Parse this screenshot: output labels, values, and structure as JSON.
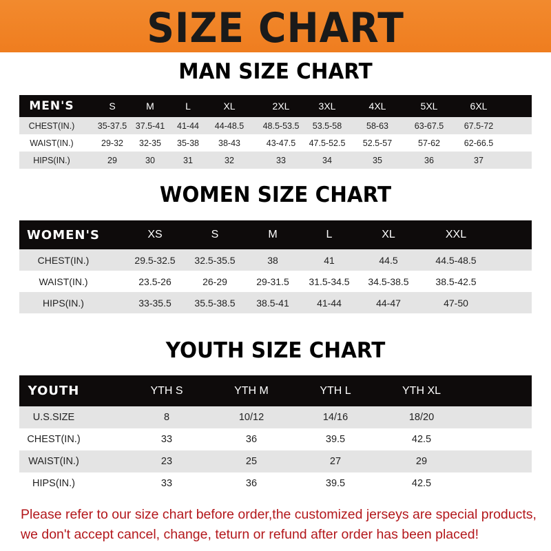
{
  "banner": {
    "title": "SIZE CHART",
    "color": "#ef7d1f"
  },
  "men": {
    "title": "MAN SIZE CHART",
    "header": [
      "MEN'S",
      "S",
      "M",
      "L",
      "XL",
      "2XL",
      "3XL",
      "4XL",
      "5XL",
      "6XL"
    ],
    "rows": [
      [
        "CHEST(IN.)",
        "35-37.5",
        "37.5-41",
        "41-44",
        "44-48.5",
        "48.5-53.5",
        "53.5-58",
        "58-63",
        "63-67.5",
        "67.5-72"
      ],
      [
        "WAIST(IN.)",
        "29-32",
        "32-35",
        "35-38",
        "38-43",
        "43-47.5",
        "47.5-52.5",
        "52.5-57",
        "57-62",
        "62-66.5"
      ],
      [
        "HIPS(IN.)",
        "29",
        "30",
        "31",
        "32",
        "33",
        "34",
        "35",
        "36",
        "37"
      ]
    ]
  },
  "women": {
    "title": "WOMEN SIZE CHART",
    "header": [
      "WOMEN'S",
      "XS",
      "S",
      "M",
      "L",
      "XL",
      "XXL"
    ],
    "rows": [
      [
        "CHEST(IN.)",
        "29.5-32.5",
        "32.5-35.5",
        "38",
        "41",
        "44.5",
        "44.5-48.5"
      ],
      [
        "WAIST(IN.)",
        "23.5-26",
        "26-29",
        "29-31.5",
        "31.5-34.5",
        "34.5-38.5",
        "38.5-42.5"
      ],
      [
        "HIPS(IN.)",
        "33-35.5",
        "35.5-38.5",
        "38.5-41",
        "41-44",
        "44-47",
        "47-50"
      ]
    ]
  },
  "youth": {
    "title": "YOUTH SIZE CHART",
    "header": [
      "YOUTH",
      "YTH S",
      "YTH M",
      "YTH L",
      "YTH XL"
    ],
    "rows": [
      [
        "U.S.SIZE",
        "8",
        "10/12",
        "14/16",
        "18/20"
      ],
      [
        "CHEST(IN.)",
        "33",
        "36",
        "39.5",
        "42.5"
      ],
      [
        "WAIST(IN.)",
        "23",
        "25",
        "27",
        "29"
      ],
      [
        "HIPS(IN.)",
        "33",
        "36",
        "39.5",
        "42.5"
      ]
    ]
  },
  "footer": {
    "line1": "Please refer to our size chart before order,the customized jerseys are special products,",
    "line2": "we don't accept cancel, change, teturn or refund after order has been placed!",
    "color": "#b3171b"
  }
}
